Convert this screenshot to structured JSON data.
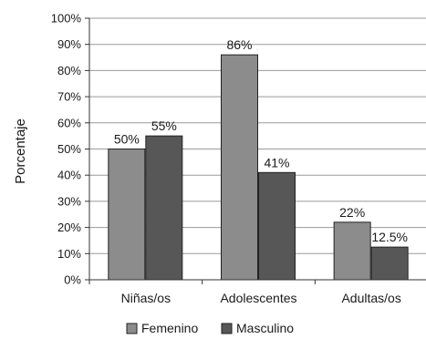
{
  "chart_data": {
    "type": "bar",
    "title": "",
    "xlabel": "",
    "ylabel": "Porcentaje",
    "ylim": [
      0,
      100
    ],
    "yticks": [
      "0%",
      "10%",
      "20%",
      "30%",
      "40%",
      "50%",
      "60%",
      "70%",
      "80%",
      "90%",
      "100%"
    ],
    "grid": true,
    "legend_position": "bottom",
    "categories": [
      "Niñas/os",
      "Adolescentes",
      "Adultas/os"
    ],
    "series": [
      {
        "name": "Femenino",
        "values": [
          50,
          86,
          22
        ],
        "labels": [
          "50%",
          "86%",
          "22%"
        ],
        "color": "#8c8c8c"
      },
      {
        "name": "Masculino",
        "values": [
          55,
          41,
          12.5
        ],
        "labels": [
          "55%",
          "41%",
          "12.5%"
        ],
        "color": "#575757"
      }
    ]
  }
}
